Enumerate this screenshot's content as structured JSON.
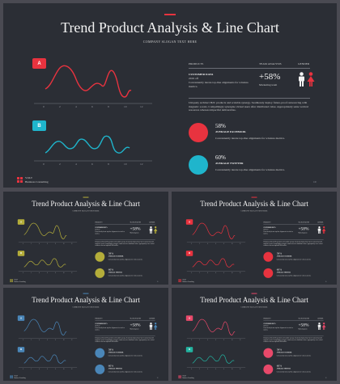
{
  "slide": {
    "title": "Trend Product Analysis & Line Chart",
    "subtitle": "COMPANY SLOGAN TEXT HERE"
  },
  "table": {
    "col1": "PRODUCTS",
    "col2": "TEAM ANALYSIS",
    "col3": "GENDER",
    "row_title": "CUSTOMER DATA",
    "row_year": "2019 off",
    "row_desc": "Conveniently iterate top-line alignments for wireless metrics.",
    "percent": "+58%",
    "percent_label": "Marketing team"
  },
  "paragraph": "Uniquely architect B2C products and scalable synergy. Seamlessly deploy future-proof outsourcing with magnetic e-tests. Compellingly synergize virtual users after distributed value. Appropriately seize vertical resources whereas impactful deliverables.",
  "stats": [
    {
      "value": "58%",
      "label": "AVERAGE FACEBOOK",
      "desc": "Conveniently iterate top-line alignments for wireless metrics."
    },
    {
      "value": "60%",
      "label": "AVERAGE TWITTER",
      "desc": "Conveniently iterate top-line alignments for wireless metrics."
    }
  ],
  "charts": {
    "badge_a": "A",
    "badge_b": "B",
    "ticks": [
      "0",
      "2",
      "4",
      "6",
      "8",
      "10",
      "12"
    ]
  },
  "footer": {
    "logo_line1": "VOLT",
    "logo_line2": "Business Consulting",
    "page": "10"
  },
  "colors": {
    "red": "#e8333f",
    "cyan": "#1fb5cc",
    "olive": "#b4ad3a",
    "steel": "#4a86b8",
    "pink": "#e8496a",
    "teal": "#22b3a0"
  },
  "icons": {
    "male": "male-person-icon",
    "female": "female-person-icon"
  }
}
